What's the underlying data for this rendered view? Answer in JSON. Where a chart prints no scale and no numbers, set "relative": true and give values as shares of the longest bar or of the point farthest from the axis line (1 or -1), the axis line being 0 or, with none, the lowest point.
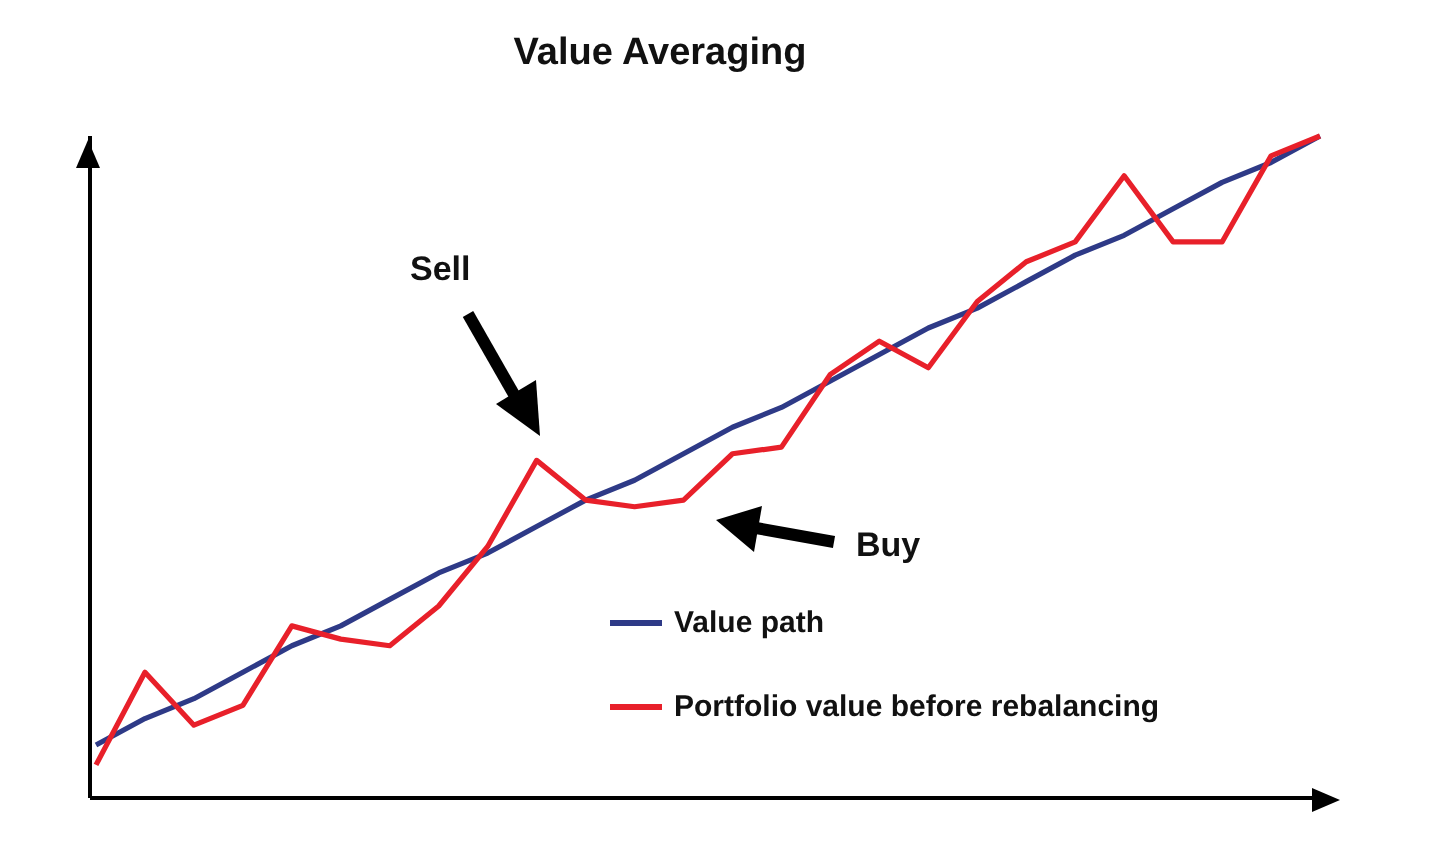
{
  "chart_data": {
    "type": "line",
    "title": "Value Averaging",
    "relative": true,
    "legend": "bottom right",
    "marker": "none",
    "categories": [
      null,
      null,
      null,
      null,
      null,
      null,
      null,
      null,
      null,
      null,
      null,
      null,
      null,
      null,
      null,
      null,
      null,
      null,
      null,
      null,
      null,
      null,
      null,
      null,
      null,
      null
    ],
    "series": [
      {
        "name": "Value path",
        "color": "#2e3a87",
        "values": [
          0.08,
          0.12,
          0.15,
          0.19,
          0.23,
          0.26,
          0.3,
          0.34,
          0.37,
          0.41,
          0.45,
          0.48,
          0.52,
          0.56,
          0.59,
          0.63,
          0.67,
          0.71,
          0.74,
          0.78,
          0.82,
          0.85,
          0.89,
          0.93,
          0.96,
          1.0
        ]
      },
      {
        "name": "Portfolio value before rebalancing",
        "color": "#e8202a",
        "values": [
          0.05,
          0.19,
          0.11,
          0.14,
          0.26,
          0.24,
          0.23,
          0.29,
          0.38,
          0.51,
          0.45,
          0.44,
          0.45,
          0.52,
          0.53,
          0.64,
          0.69,
          0.65,
          0.75,
          0.81,
          0.84,
          0.94,
          0.84,
          0.84,
          0.97,
          1.0
        ]
      }
    ],
    "annotations": [
      "Sell",
      "Buy"
    ]
  }
}
